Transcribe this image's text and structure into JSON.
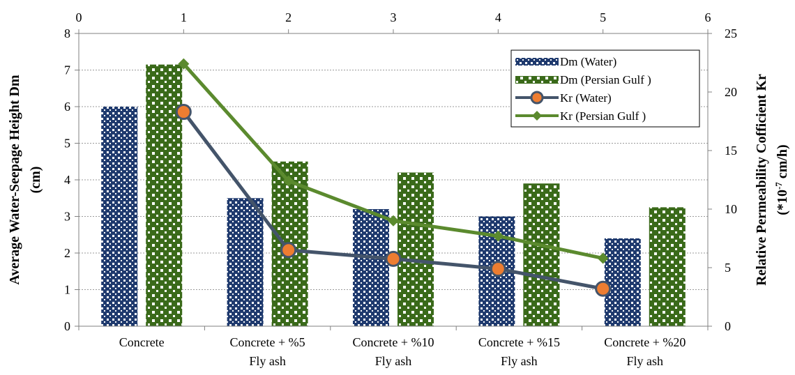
{
  "chart_data": {
    "type": "bar",
    "categories": [
      [
        "Concrete"
      ],
      [
        "Concrete + %5",
        "Fly ash"
      ],
      [
        "Concrete + %10",
        "Fly ash"
      ],
      [
        "Concrete + %15",
        "Fly ash"
      ],
      [
        "Concrete + %20",
        "Fly ash"
      ]
    ],
    "series": [
      {
        "name": "Dm (Water)",
        "kind": "bar",
        "axis": "left",
        "values": [
          6.0,
          3.5,
          3.2,
          3.0,
          2.4
        ],
        "color": "#1f3a6e"
      },
      {
        "name": "Dm (Persian Gulf )",
        "kind": "bar",
        "axis": "left",
        "values": [
          7.15,
          4.5,
          4.2,
          3.9,
          3.25
        ],
        "color": "#3a6a1a"
      },
      {
        "name": "Kr (Water)",
        "kind": "line",
        "axis": "right",
        "x": [
          1,
          2,
          3,
          4,
          5
        ],
        "values": [
          18.3,
          6.5,
          5.75,
          4.9,
          3.2
        ],
        "color": "#44546a",
        "marker_fill": "#ed7d31"
      },
      {
        "name": "Kr (Persian Gulf )",
        "kind": "line",
        "axis": "right",
        "x": [
          1,
          2,
          3,
          4,
          5
        ],
        "values": [
          22.4,
          12.4,
          9.0,
          7.7,
          5.8
        ],
        "color": "#5b8a2e"
      }
    ],
    "ylabel": [
      "Average Water-Seepage Height Dm",
      "(cm)"
    ],
    "y2label": [
      "Relative Permeability Cofficient Kr",
      "(*10",
      "-7",
      " cm/h)"
    ],
    "ylim": [
      0,
      8
    ],
    "y2lim": [
      0,
      25
    ],
    "x2lim": [
      0,
      6
    ],
    "y_ticks": [
      0,
      1,
      2,
      3,
      4,
      5,
      6,
      7,
      8
    ],
    "y2_ticks": [
      0,
      5,
      10,
      15,
      20,
      25
    ],
    "x2_ticks": [
      0,
      1,
      2,
      3,
      4,
      5,
      6
    ],
    "grid": true,
    "legend_position": "top-right"
  }
}
